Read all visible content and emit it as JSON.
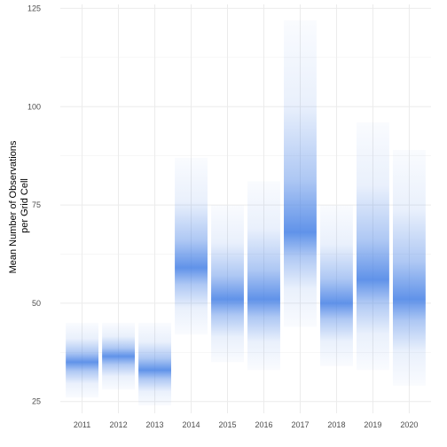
{
  "chart_data": {
    "type": "gradient-interval",
    "title": "",
    "xlabel": "",
    "ylabel_lines": [
      "Mean Number of Observations",
      "per Grid Cell"
    ],
    "ylim": [
      22,
      126
    ],
    "y_ticks": [
      25,
      50,
      75,
      100,
      125
    ],
    "grid": true,
    "legend": "none",
    "color": "#4b84e6",
    "categories": [
      "2011",
      "2012",
      "2013",
      "2014",
      "2015",
      "2016",
      "2017",
      "2018",
      "2019",
      "2020"
    ],
    "center": [
      35,
      36.5,
      33,
      59,
      51,
      51,
      68,
      50,
      56,
      51
    ],
    "low": [
      26,
      28,
      24,
      42,
      35,
      33,
      44,
      34,
      33,
      29
    ],
    "high": [
      45,
      45,
      45,
      87,
      75,
      81,
      122,
      75,
      96,
      89
    ]
  }
}
